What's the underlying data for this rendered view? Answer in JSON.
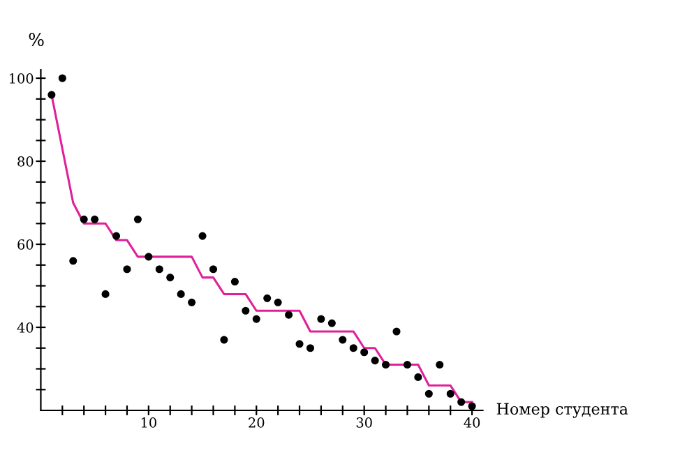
{
  "chart_data": {
    "type": "scatter",
    "ylabel": "%",
    "xlabel": "Номер студента",
    "xlim": [
      0,
      41
    ],
    "ylim": [
      20,
      102
    ],
    "xticks": [
      {
        "value": 2,
        "label": null
      },
      {
        "value": 4,
        "label": null
      },
      {
        "value": 6,
        "label": null
      },
      {
        "value": 8,
        "label": null
      },
      10,
      {
        "value": 12,
        "label": null
      },
      {
        "value": 14,
        "label": null
      },
      {
        "value": 16,
        "label": null
      },
      {
        "value": 18,
        "label": null
      },
      20,
      {
        "value": 22,
        "label": null
      },
      {
        "value": 24,
        "label": null
      },
      {
        "value": 26,
        "label": null
      },
      {
        "value": 28,
        "label": null
      },
      30,
      {
        "value": 32,
        "label": null
      },
      {
        "value": 34,
        "label": null
      },
      {
        "value": 36,
        "label": null
      },
      {
        "value": 38,
        "label": null
      },
      40
    ],
    "yticks": [
      {
        "value": 25,
        "label": null
      },
      {
        "value": 30,
        "label": null
      },
      {
        "value": 35,
        "label": null
      },
      40,
      {
        "value": 45,
        "label": null
      },
      {
        "value": 50,
        "label": null
      },
      {
        "value": 55,
        "label": null
      },
      60,
      {
        "value": 65,
        "label": null
      },
      {
        "value": 70,
        "label": null
      },
      {
        "value": 75,
        "label": null
      },
      80,
      {
        "value": 85,
        "label": null
      },
      {
        "value": 90,
        "label": null
      },
      {
        "value": 95,
        "label": null
      },
      100
    ],
    "grid": false,
    "legend": false,
    "series": [
      {
        "color": "#000000",
        "marker": "circle",
        "x": [
          1,
          2,
          3,
          4,
          5,
          6,
          7,
          8,
          9,
          10,
          11,
          12,
          13,
          14,
          15,
          16,
          17,
          18,
          19,
          20,
          21,
          22,
          23,
          24,
          25,
          26,
          27,
          28,
          29,
          30,
          31,
          32,
          33,
          34,
          35,
          36,
          37,
          38,
          39,
          40
        ],
        "values": [
          96,
          100,
          56,
          66,
          66,
          48,
          62,
          54,
          66,
          57,
          54,
          52,
          48,
          46,
          62,
          54,
          37,
          51,
          44,
          42,
          47,
          46,
          43,
          36,
          35,
          42,
          41,
          37,
          35,
          34,
          32,
          31,
          39,
          31,
          28,
          24,
          31,
          24,
          22,
          21
        ]
      },
      {
        "type": "line",
        "color": "#e0209a",
        "marker": "none",
        "line_style": "solid",
        "x": [
          1,
          3,
          4,
          6,
          7,
          8,
          9,
          14,
          15,
          16,
          17,
          19,
          20,
          24,
          25,
          29,
          30,
          31,
          32,
          35,
          36,
          38,
          39,
          40
        ],
        "values": [
          96,
          70,
          65,
          65,
          61,
          61,
          57,
          57,
          52,
          52,
          48,
          48,
          44,
          44,
          39,
          39,
          35,
          35,
          31,
          31,
          26,
          26,
          22,
          22
        ]
      }
    ]
  }
}
